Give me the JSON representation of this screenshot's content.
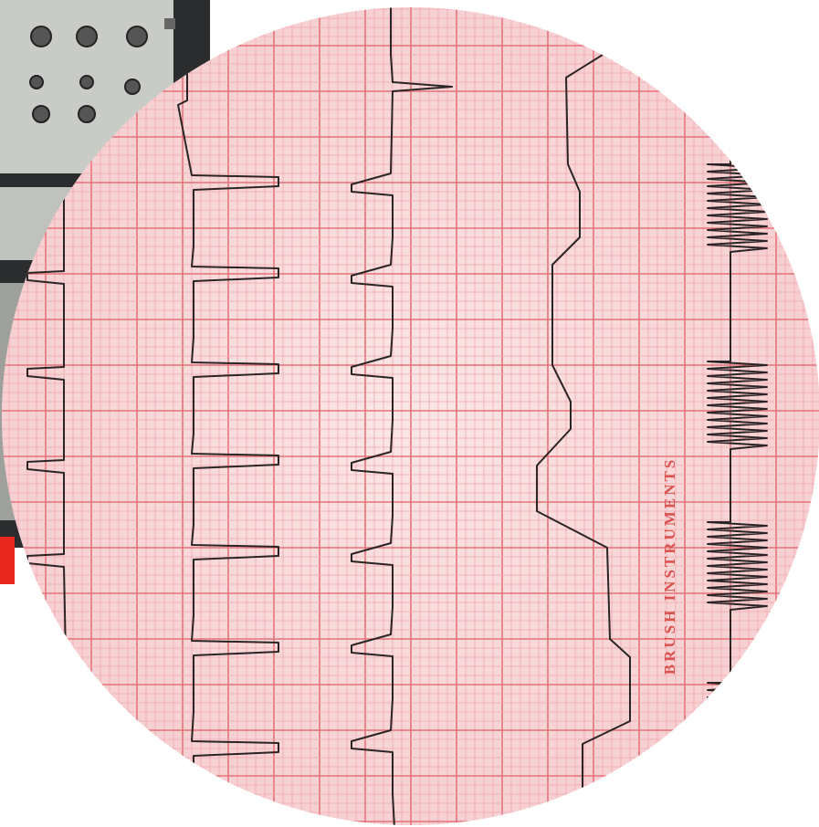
{
  "image": {
    "label": "BRUSH INSTRUMENTS"
  }
}
